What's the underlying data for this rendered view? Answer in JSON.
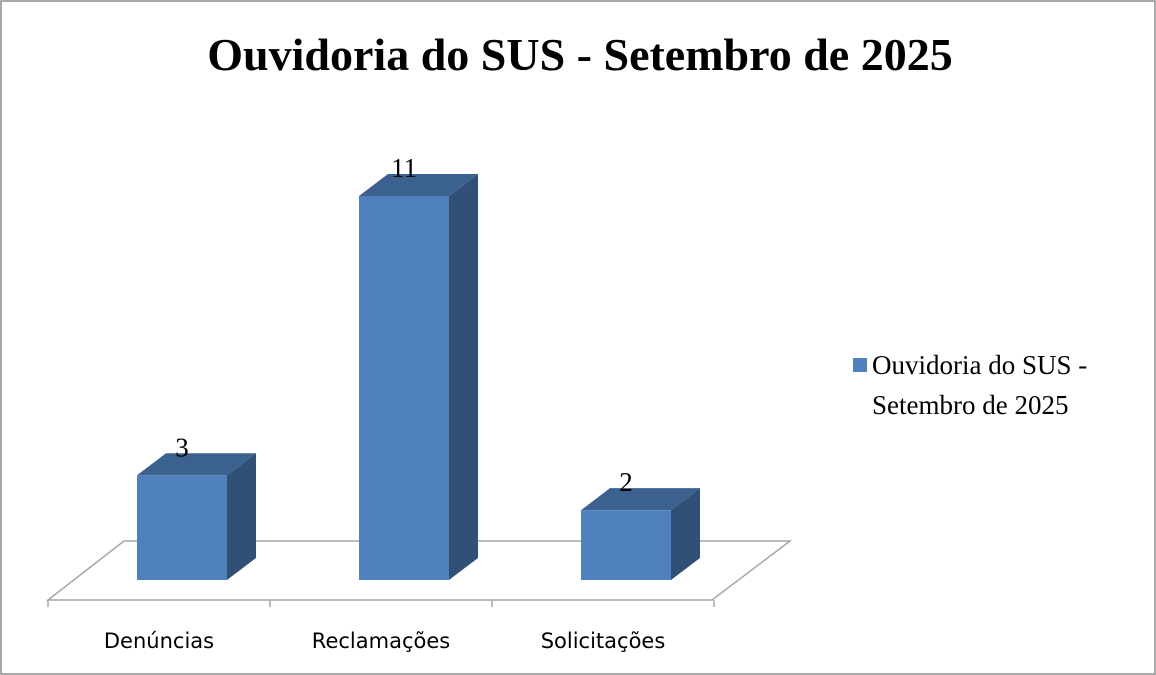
{
  "chart_data": {
    "type": "bar",
    "title": "Ouvidoria do SUS - Setembro de 2025",
    "categories": [
      "Denúncias",
      "Reclamações",
      "Solicitações"
    ],
    "series": [
      {
        "name": "Ouvidoria do SUS - Setembro de 2025",
        "color": "#4f81bd",
        "values": [
          3,
          11,
          2
        ]
      }
    ],
    "legend": "right"
  }
}
